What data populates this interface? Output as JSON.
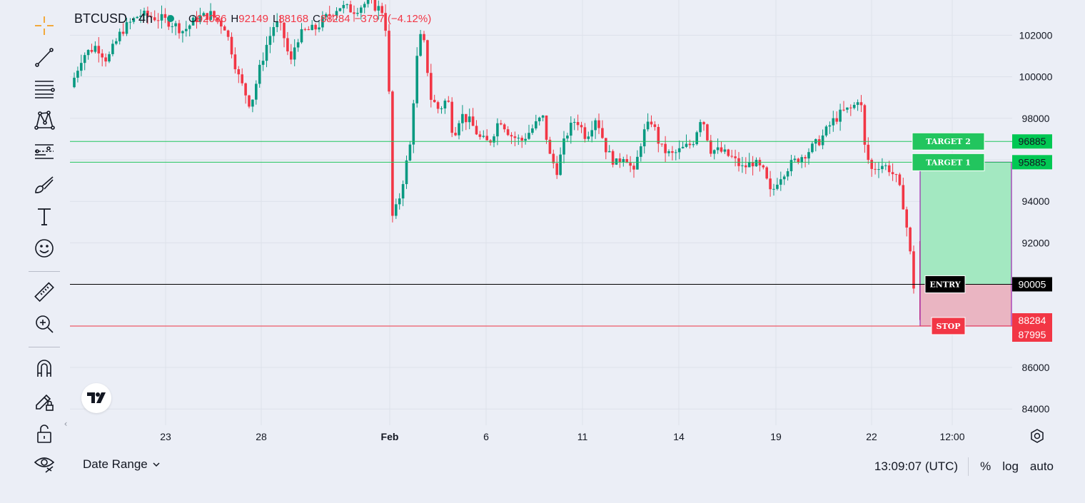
{
  "header": {
    "symbol": "BTCUSD · 4h",
    "open_label": "O",
    "open_value": "92086",
    "high_label": "H",
    "high_value": "92149",
    "low_label": "L",
    "low_value": "88168",
    "close_label": "C",
    "close_value": "88284",
    "change": "−3797 (−4.12%)"
  },
  "toolbar": {
    "items": [
      "crosshair-icon",
      "trend-line-icon",
      "fib-retracement-icon",
      "pattern-icon",
      "prediction-icon",
      "brush-icon",
      "text-icon",
      "emoji-icon",
      "ruler-icon",
      "zoom-in-icon",
      "magnet-icon",
      "lock-drawing-icon",
      "unlock-icon",
      "eye-icon"
    ]
  },
  "price_axis": {
    "ticks": [
      "102000",
      "100000",
      "98000",
      "94000",
      "92000",
      "86000",
      "84000"
    ]
  },
  "time_axis": {
    "ticks": [
      {
        "label": "23",
        "bold": false
      },
      {
        "label": "28",
        "bold": false
      },
      {
        "label": "Feb",
        "bold": true
      },
      {
        "label": "6",
        "bold": false
      },
      {
        "label": "11",
        "bold": false
      },
      {
        "label": "14",
        "bold": false
      },
      {
        "label": "19",
        "bold": false
      },
      {
        "label": "22",
        "bold": false
      },
      {
        "label": "12:00",
        "bold": false
      }
    ]
  },
  "levels": [
    {
      "name": "target-2",
      "label": "TARGET 2",
      "price": 96885,
      "price_label": "96885",
      "color": "#22c55e"
    },
    {
      "name": "target-1",
      "label": "TARGET 1",
      "price": 95885,
      "price_label": "95885",
      "color": "#22c55e"
    },
    {
      "name": "entry",
      "label": "ENTRY",
      "price": 90005,
      "price_label": "90005",
      "color": "#000000"
    },
    {
      "name": "stop",
      "label": "STOP",
      "price": 87995,
      "price_label": "87995",
      "color": "#f23645"
    }
  ],
  "last_price": {
    "price": 88284,
    "label": "88284",
    "color": "#f23645"
  },
  "position_box": {
    "entry": 90005,
    "target": 95885,
    "stop": 87995,
    "profit_color": "#a3e8c1",
    "loss_color": "#eab5c2",
    "border_color": "#9c27b0"
  },
  "colors": {
    "up": "#089981",
    "down": "#f23645",
    "grid": "#dde1ea",
    "background": "#ebeef6"
  },
  "footer": {
    "date_range": "Date Range",
    "time": "13:09:07 (UTC)",
    "percent": "%",
    "log": "log",
    "auto": "auto"
  }
}
